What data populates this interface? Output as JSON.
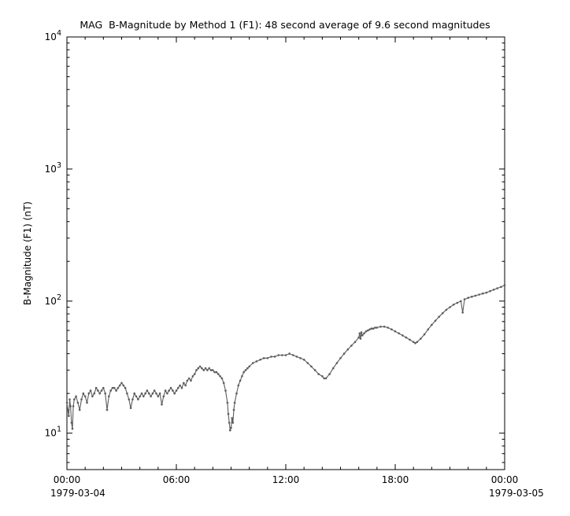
{
  "chart_data": {
    "type": "line",
    "title": "MAG  B-Magnitude by Method 1 (F1): 48 second average of 9.6 second magnitudes",
    "ylabel": "B-Magnitude (F1) (nT)",
    "xlabel": "",
    "x_start_date_label": "1979-03-04",
    "x_end_date_label": "1979-03-05",
    "y_scale": "log",
    "grid": false,
    "legend": "none",
    "xlim_hours": [
      0,
      24
    ],
    "ylim": [
      5.3,
      10000
    ],
    "x_minor_tick_interval_hours": 1,
    "x_ticks": [
      {
        "hour": 0,
        "label": "00:00"
      },
      {
        "hour": 6,
        "label": "06:00"
      },
      {
        "hour": 12,
        "label": "12:00"
      },
      {
        "hour": 18,
        "label": "18:00"
      },
      {
        "hour": 24,
        "label": "00:00"
      }
    ],
    "y_ticks": [
      {
        "value": 10,
        "base": "10",
        "exp": "1"
      },
      {
        "value": 100,
        "base": "10",
        "exp": "2"
      },
      {
        "value": 1000,
        "base": "10",
        "exp": "3"
      },
      {
        "value": 10000,
        "base": "10",
        "exp": "4"
      }
    ],
    "marker_color": "#5c5c5c",
    "axis_color": "#000000",
    "points": [
      [
        0.0,
        17
      ],
      [
        0.05,
        15
      ],
      [
        0.1,
        13.5
      ],
      [
        0.15,
        18
      ],
      [
        0.2,
        16
      ],
      [
        0.25,
        12
      ],
      [
        0.3,
        10.8
      ],
      [
        0.35,
        16
      ],
      [
        0.4,
        18
      ],
      [
        0.5,
        19
      ],
      [
        0.6,
        17
      ],
      [
        0.7,
        15
      ],
      [
        0.8,
        18
      ],
      [
        0.9,
        20
      ],
      [
        1.0,
        19
      ],
      [
        1.1,
        17
      ],
      [
        1.2,
        20
      ],
      [
        1.3,
        21
      ],
      [
        1.4,
        19
      ],
      [
        1.5,
        20
      ],
      [
        1.6,
        22
      ],
      [
        1.7,
        21
      ],
      [
        1.8,
        20
      ],
      [
        1.9,
        21
      ],
      [
        2.0,
        22
      ],
      [
        2.1,
        20
      ],
      [
        2.2,
        15
      ],
      [
        2.3,
        19
      ],
      [
        2.4,
        21
      ],
      [
        2.5,
        22
      ],
      [
        2.6,
        22
      ],
      [
        2.7,
        21
      ],
      [
        2.8,
        22
      ],
      [
        2.9,
        23
      ],
      [
        3.0,
        24
      ],
      [
        3.1,
        23
      ],
      [
        3.2,
        22
      ],
      [
        3.3,
        20
      ],
      [
        3.4,
        18
      ],
      [
        3.5,
        15.5
      ],
      [
        3.6,
        18
      ],
      [
        3.7,
        20
      ],
      [
        3.8,
        19
      ],
      [
        3.9,
        18
      ],
      [
        4.0,
        19
      ],
      [
        4.1,
        20
      ],
      [
        4.2,
        19
      ],
      [
        4.3,
        20
      ],
      [
        4.4,
        21
      ],
      [
        4.5,
        20
      ],
      [
        4.6,
        19
      ],
      [
        4.7,
        20
      ],
      [
        4.8,
        21
      ],
      [
        4.9,
        20
      ],
      [
        5.0,
        19
      ],
      [
        5.1,
        20
      ],
      [
        5.2,
        16.5
      ],
      [
        5.3,
        19
      ],
      [
        5.4,
        21
      ],
      [
        5.5,
        20
      ],
      [
        5.6,
        21
      ],
      [
        5.7,
        22
      ],
      [
        5.8,
        21
      ],
      [
        5.9,
        20
      ],
      [
        6.0,
        21
      ],
      [
        6.1,
        22
      ],
      [
        6.2,
        23
      ],
      [
        6.3,
        22
      ],
      [
        6.4,
        24
      ],
      [
        6.5,
        23
      ],
      [
        6.6,
        25
      ],
      [
        6.7,
        26
      ],
      [
        6.8,
        25
      ],
      [
        6.9,
        27
      ],
      [
        7.0,
        28
      ],
      [
        7.1,
        30
      ],
      [
        7.2,
        31
      ],
      [
        7.3,
        32
      ],
      [
        7.4,
        31
      ],
      [
        7.5,
        30
      ],
      [
        7.6,
        31
      ],
      [
        7.7,
        30
      ],
      [
        7.8,
        31
      ],
      [
        7.9,
        30
      ],
      [
        8.0,
        30
      ],
      [
        8.1,
        29
      ],
      [
        8.2,
        29
      ],
      [
        8.3,
        28
      ],
      [
        8.4,
        27
      ],
      [
        8.5,
        26
      ],
      [
        8.6,
        24
      ],
      [
        8.7,
        21
      ],
      [
        8.8,
        17
      ],
      [
        8.85,
        14
      ],
      [
        8.9,
        12
      ],
      [
        8.95,
        10.5
      ],
      [
        9.0,
        11
      ],
      [
        9.05,
        13
      ],
      [
        9.1,
        12
      ],
      [
        9.15,
        15
      ],
      [
        9.2,
        17
      ],
      [
        9.3,
        20
      ],
      [
        9.4,
        23
      ],
      [
        9.5,
        25
      ],
      [
        9.6,
        27
      ],
      [
        9.7,
        29
      ],
      [
        9.8,
        30
      ],
      [
        9.9,
        31
      ],
      [
        10.0,
        32
      ],
      [
        10.2,
        34
      ],
      [
        10.4,
        35
      ],
      [
        10.6,
        36
      ],
      [
        10.8,
        37
      ],
      [
        11.0,
        37
      ],
      [
        11.2,
        38
      ],
      [
        11.4,
        38
      ],
      [
        11.6,
        39
      ],
      [
        11.8,
        39
      ],
      [
        12.0,
        39
      ],
      [
        12.2,
        40
      ],
      [
        12.4,
        39
      ],
      [
        12.6,
        38
      ],
      [
        12.8,
        37
      ],
      [
        13.0,
        36
      ],
      [
        13.2,
        34
      ],
      [
        13.4,
        32
      ],
      [
        13.6,
        30
      ],
      [
        13.8,
        28
      ],
      [
        14.0,
        27
      ],
      [
        14.1,
        26
      ],
      [
        14.2,
        26
      ],
      [
        14.4,
        28
      ],
      [
        14.6,
        31
      ],
      [
        14.8,
        34
      ],
      [
        15.0,
        37
      ],
      [
        15.2,
        40
      ],
      [
        15.4,
        43
      ],
      [
        15.6,
        46
      ],
      [
        15.8,
        49
      ],
      [
        16.0,
        53
      ],
      [
        16.05,
        57
      ],
      [
        16.1,
        52
      ],
      [
        16.15,
        58
      ],
      [
        16.2,
        55
      ],
      [
        16.3,
        57
      ],
      [
        16.4,
        59
      ],
      [
        16.5,
        60
      ],
      [
        16.6,
        61
      ],
      [
        16.7,
        62
      ],
      [
        16.8,
        62
      ],
      [
        16.9,
        63
      ],
      [
        17.0,
        63
      ],
      [
        17.2,
        64
      ],
      [
        17.4,
        64
      ],
      [
        17.6,
        63
      ],
      [
        17.8,
        61
      ],
      [
        18.0,
        59
      ],
      [
        18.2,
        57
      ],
      [
        18.4,
        55
      ],
      [
        18.6,
        53
      ],
      [
        18.8,
        51
      ],
      [
        19.0,
        49
      ],
      [
        19.1,
        48
      ],
      [
        19.2,
        49
      ],
      [
        19.4,
        52
      ],
      [
        19.6,
        56
      ],
      [
        19.8,
        61
      ],
      [
        20.0,
        66
      ],
      [
        20.2,
        71
      ],
      [
        20.4,
        76
      ],
      [
        20.6,
        81
      ],
      [
        20.8,
        86
      ],
      [
        21.0,
        90
      ],
      [
        21.2,
        94
      ],
      [
        21.4,
        97
      ],
      [
        21.6,
        100
      ],
      [
        21.7,
        82
      ],
      [
        21.8,
        103
      ],
      [
        22.0,
        106
      ],
      [
        22.2,
        108
      ],
      [
        22.4,
        110
      ],
      [
        22.6,
        112
      ],
      [
        22.8,
        114
      ],
      [
        23.0,
        116
      ],
      [
        23.2,
        119
      ],
      [
        23.4,
        122
      ],
      [
        23.6,
        125
      ],
      [
        23.8,
        128
      ],
      [
        24.0,
        132
      ]
    ]
  }
}
